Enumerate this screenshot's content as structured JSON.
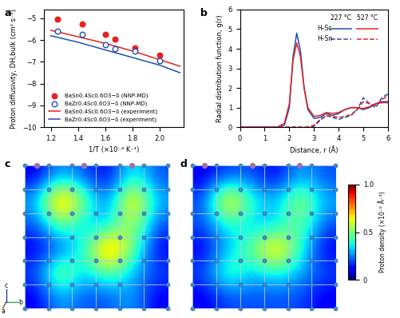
{
  "chart_data": [
    {
      "panel": "a",
      "type": "scatter_line",
      "xlabel": "1/T (×10⁻³ K⁻¹)",
      "ylabel": "Proton diffusivity, DH,bulk (cm² s⁻¹)",
      "xlim": [
        1.15,
        2.18
      ],
      "xticks": [
        1.2,
        1.4,
        1.6,
        1.8,
        2.0
      ],
      "ylim": [
        -10,
        -4.6
      ],
      "yticks": [
        {
          "value": -10,
          "label": "−10"
        },
        {
          "value": -9,
          "label": "−9"
        },
        {
          "value": -8,
          "label": "−8"
        },
        {
          "value": -7,
          "label": "−7"
        },
        {
          "value": -6,
          "label": "−6"
        },
        {
          "value": -5,
          "label": "−5"
        }
      ],
      "legend": "lower left",
      "series": [
        {
          "name": "BaSn0.4Sc0.6O3−δ (NNP-MD)",
          "type": "scatter",
          "color": "#e8201e",
          "marker": "filled_circle",
          "x": [
            1.25,
            1.43,
            1.6,
            1.67,
            1.82,
            2.0
          ],
          "values": [
            -5.05,
            -5.25,
            -5.75,
            -5.95,
            -6.35,
            -6.7
          ]
        },
        {
          "name": "BaZr0.4Sc0.6O3−δ (NNP-MD)",
          "type": "scatter",
          "color": "#1f4fb4",
          "marker": "open_circle",
          "x": [
            1.25,
            1.43,
            1.6,
            1.67,
            1.82,
            2.0
          ],
          "values": [
            -5.6,
            -5.75,
            -6.2,
            -6.4,
            -6.5,
            -6.95
          ]
        },
        {
          "name": "BaSn0.4Sc0.6O3−δ (experiment)",
          "type": "line",
          "color": "#e8201e",
          "line_style": "solid",
          "x": [
            1.2,
            1.4,
            1.6,
            1.8,
            2.0,
            2.15
          ],
          "values": [
            -5.55,
            -5.85,
            -6.15,
            -6.5,
            -6.9,
            -7.2
          ]
        },
        {
          "name": "BaZr0.4Sc0.6O3−δ (experiment)",
          "type": "line",
          "color": "#1f4fb4",
          "line_style": "solid",
          "x": [
            1.2,
            1.4,
            1.6,
            1.8,
            2.0,
            2.15
          ],
          "values": [
            -5.8,
            -6.1,
            -6.45,
            -6.8,
            -7.15,
            -7.5
          ]
        }
      ]
    },
    {
      "panel": "b",
      "type": "line",
      "xlabel": "Distance, r (Å)",
      "ylabel": "Radial distribution function, g(r)",
      "xlim": [
        0,
        6
      ],
      "xticks": [
        0,
        1,
        2,
        3,
        4,
        5,
        6
      ],
      "ylim": [
        0,
        6
      ],
      "yticks": [
        0,
        1,
        2,
        3,
        4,
        5,
        6
      ],
      "legend": "upper right",
      "legend_rows": [
        "H–Sc",
        "H–Sn"
      ],
      "legend_columns": [
        "227 °C",
        "527 °C"
      ],
      "x": [
        0,
        0.5,
        1.0,
        1.5,
        1.8,
        2.0,
        2.15,
        2.3,
        2.45,
        2.6,
        2.75,
        3.0,
        3.25,
        3.5,
        3.75,
        4.0,
        4.25,
        4.5,
        4.75,
        5.0,
        5.25,
        5.5,
        5.75,
        6.0
      ],
      "series": [
        {
          "pair": "H–Sc",
          "temperature": "227 °C",
          "color": "#1f4fb4",
          "line_style": "solid",
          "values": [
            0,
            0,
            0,
            0,
            0.1,
            1.0,
            3.6,
            4.8,
            3.9,
            2.0,
            0.9,
            0.45,
            0.5,
            0.7,
            0.6,
            0.7,
            0.9,
            1.0,
            1.0,
            0.9,
            1.0,
            1.2,
            1.3,
            1.3
          ]
        },
        {
          "pair": "H–Sc",
          "temperature": "527 °C",
          "color": "#e8201e",
          "line_style": "solid",
          "values": [
            0,
            0,
            0,
            0,
            0.2,
            1.2,
            3.4,
            4.3,
            3.6,
            2.0,
            1.0,
            0.55,
            0.6,
            0.75,
            0.7,
            0.75,
            0.9,
            1.0,
            1.0,
            0.95,
            1.05,
            1.2,
            1.25,
            1.25
          ]
        },
        {
          "pair": "H–Sn",
          "temperature": "227 °C",
          "color": "#1f4fb4",
          "line_style": "dashed",
          "values": [
            0,
            0,
            0,
            0,
            0,
            0,
            0,
            0,
            0,
            0,
            0,
            0.05,
            0.35,
            0.6,
            0.5,
            0.4,
            0.5,
            0.6,
            0.9,
            1.5,
            1.2,
            1.0,
            1.5,
            1.7
          ]
        },
        {
          "pair": "H–Sn",
          "temperature": "527 °C",
          "color": "#e8201e",
          "line_style": "dashed",
          "values": [
            0,
            0,
            0,
            0,
            0,
            0,
            0,
            0,
            0,
            0,
            0.02,
            0.1,
            0.4,
            0.6,
            0.55,
            0.5,
            0.55,
            0.65,
            0.9,
            1.3,
            1.2,
            1.1,
            1.4,
            1.6
          ]
        }
      ]
    },
    {
      "panel": "c",
      "type": "heatmap",
      "tick_labels": false,
      "axes_triad": [
        "a",
        "b",
        "c"
      ],
      "cells": [
        [
          0.1,
          0.3,
          0.2,
          0.1,
          0.4,
          0.2
        ],
        [
          0.3,
          0.9,
          0.5,
          0.2,
          0.8,
          0.3
        ],
        [
          0.2,
          0.5,
          0.3,
          0.3,
          0.6,
          0.2
        ],
        [
          0.1,
          0.2,
          0.4,
          0.9,
          0.5,
          0.1
        ],
        [
          0.2,
          0.6,
          0.3,
          0.5,
          0.3,
          0.2
        ],
        [
          0.1,
          0.3,
          0.2,
          0.2,
          0.3,
          0.1
        ]
      ]
    },
    {
      "panel": "d",
      "type": "heatmap",
      "tick_labels": false,
      "cells": [
        [
          0.1,
          0.2,
          0.2,
          0.1,
          0.3,
          0.2
        ],
        [
          0.2,
          0.8,
          0.4,
          0.3,
          0.6,
          0.3
        ],
        [
          0.2,
          0.4,
          0.3,
          0.3,
          0.5,
          0.2
        ],
        [
          0.1,
          0.3,
          0.5,
          0.8,
          0.4,
          0.1
        ],
        [
          0.2,
          0.5,
          0.3,
          0.4,
          0.3,
          0.2
        ],
        [
          0.1,
          0.2,
          0.2,
          0.2,
          0.2,
          0.1
        ]
      ],
      "colorbar_label": "Proton density (×10⁻⁵ Å⁻³)",
      "colorbar_lim": [
        0,
        1
      ],
      "colorbar_ticks": [
        0,
        0.5,
        1.0
      ]
    }
  ]
}
